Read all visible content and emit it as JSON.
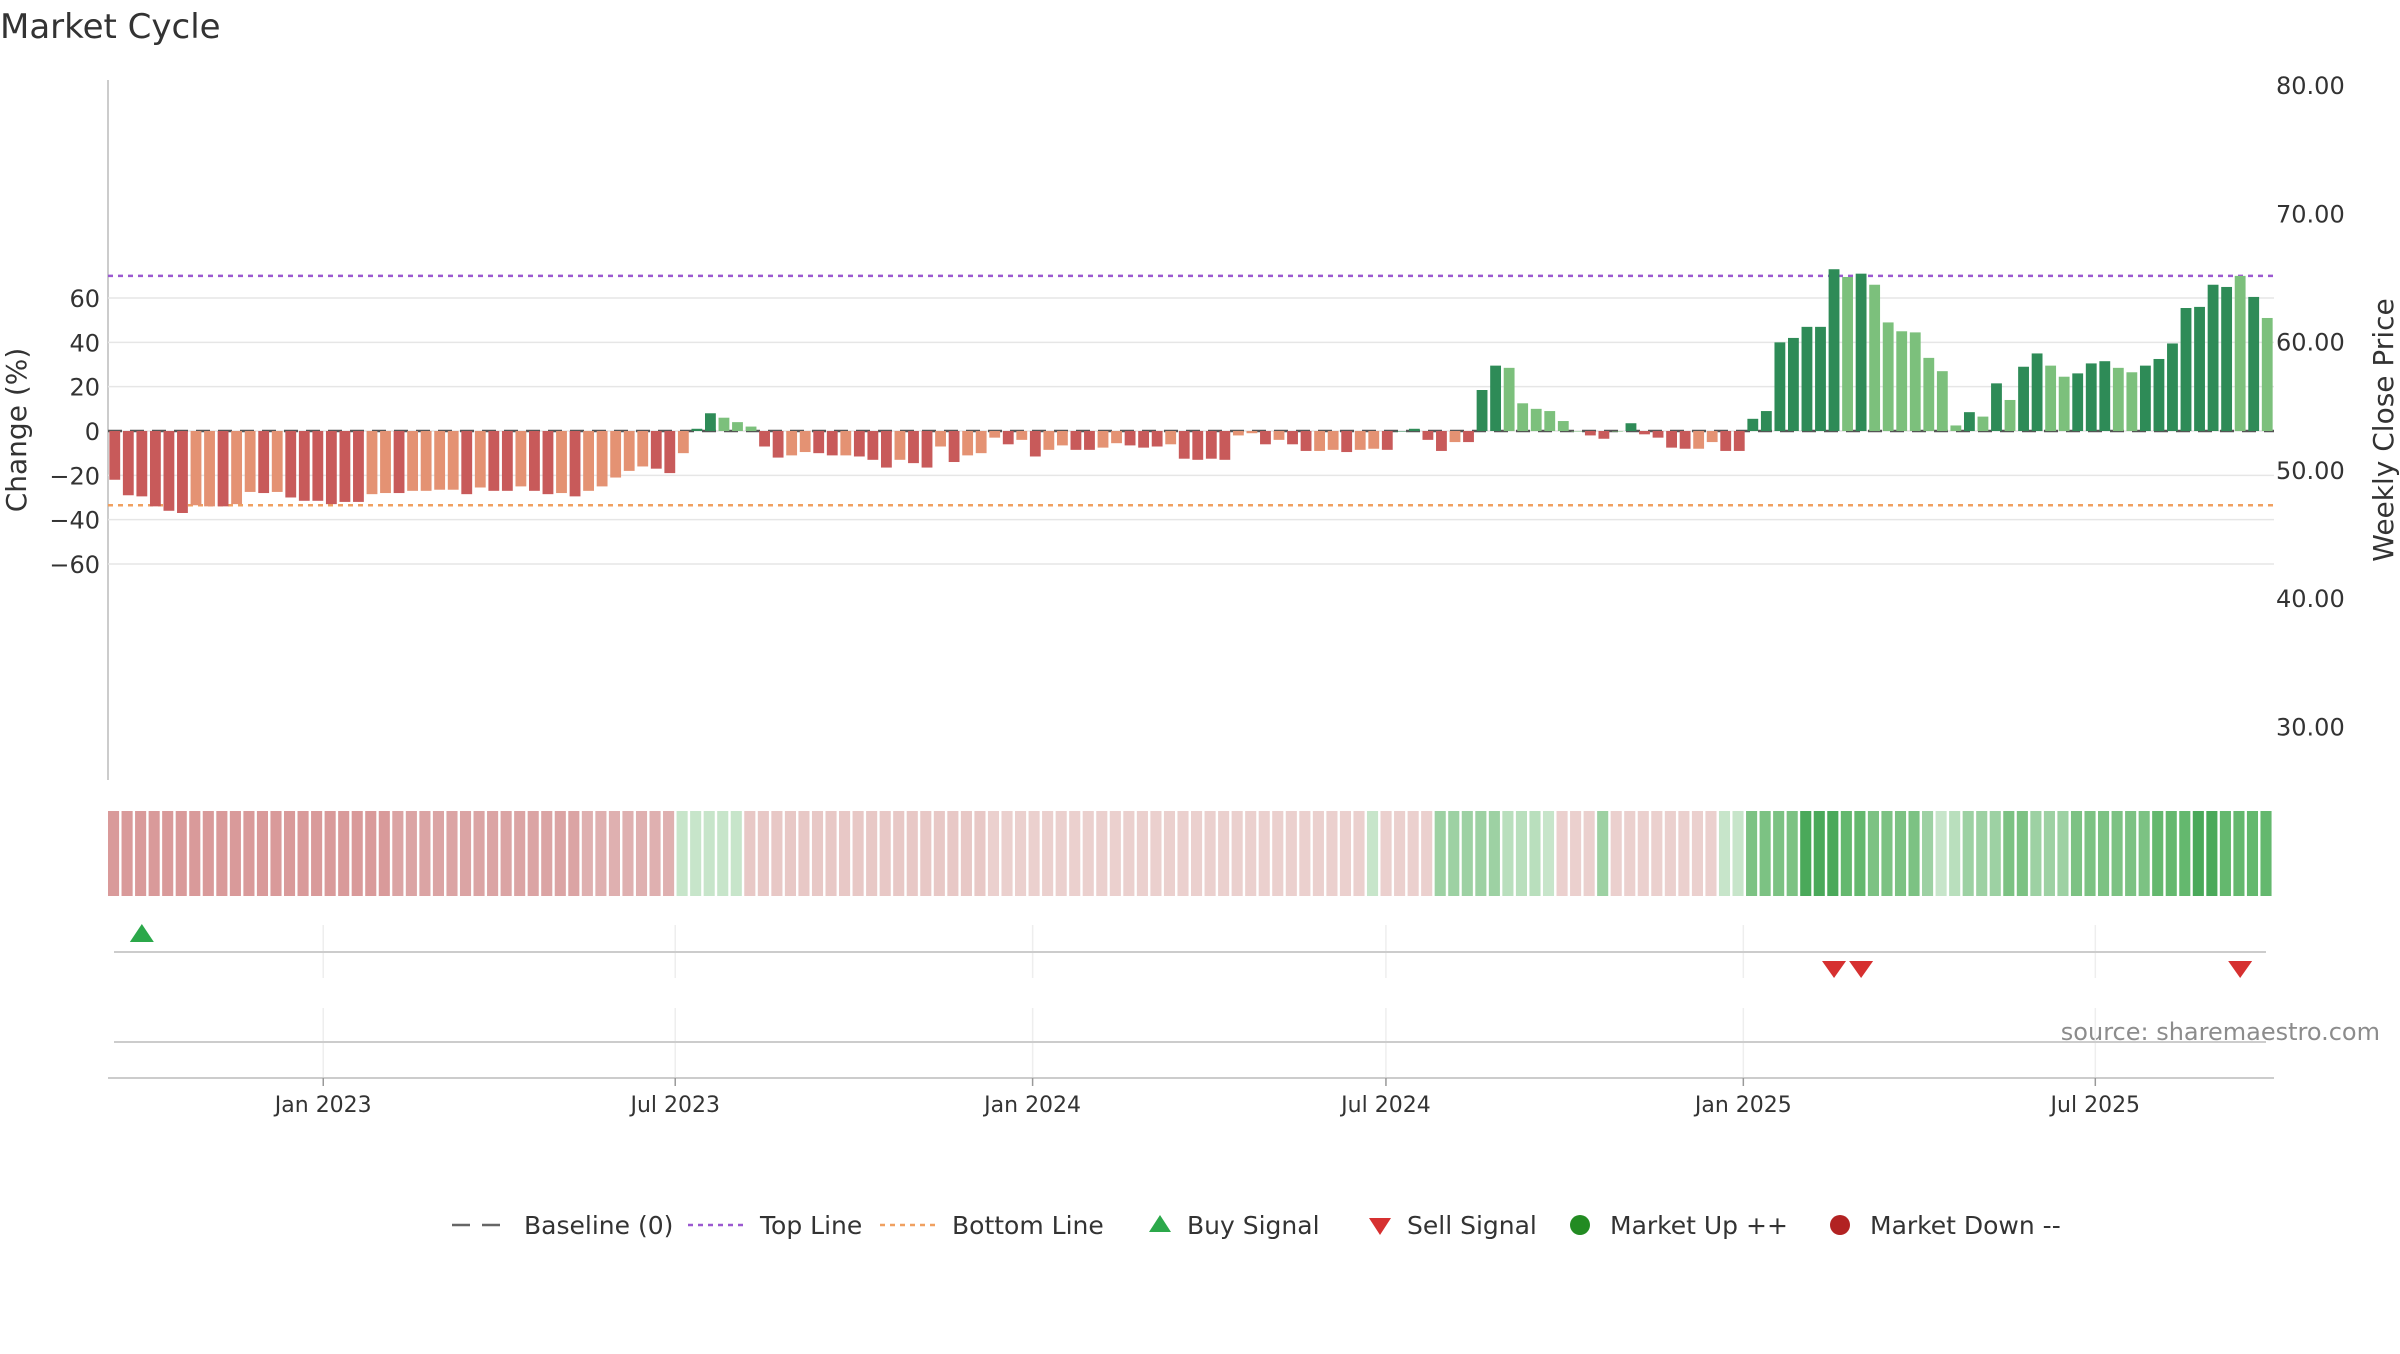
{
  "chart_data": {
    "type": "bar",
    "title": "Market Cycle",
    "ylabel": "Change (%)",
    "y2label": "Weekly Close Price",
    "source": "source: sharemaestro.com",
    "ylim": [
      -80,
      77
    ],
    "y2lim": [
      25,
      80
    ],
    "yticks": [
      60,
      40,
      20,
      0,
      -20,
      -40,
      -60
    ],
    "ytick_labels": [
      "60",
      "40",
      "20",
      "0",
      "−20",
      "−40",
      "−60"
    ],
    "y2ticks": [
      80,
      70,
      60,
      50,
      40,
      30
    ],
    "y2tick_labels": [
      "80.00",
      "70.00",
      "60.00",
      "50.00",
      "40.00",
      "30.00"
    ],
    "x_tick_labels": [
      "Jan 2023",
      "Jul 2023",
      "Jan 2024",
      "Jul 2024",
      "Jan 2025",
      "Jul 2025"
    ],
    "x_tick_week_index": [
      15.4,
      41.4,
      67.8,
      93.9,
      120.3,
      146.3
    ],
    "top_line": 70,
    "bottom_line": -33.5,
    "baseline": 0,
    "grid": true,
    "legend_placement": "bottom-center",
    "weekly_change": [
      -22,
      -29,
      -29.5,
      -34,
      -36,
      -37,
      -33.5,
      -34,
      -34,
      -33,
      -27.5,
      -28,
      -27.5,
      -30,
      -31.5,
      -31.5,
      -33,
      -32,
      -32,
      -28.5,
      -28,
      -28,
      -27,
      -27,
      -26.5,
      -26.5,
      -28.5,
      -25.5,
      -27,
      -27,
      -25,
      -27,
      -28.5,
      -28,
      -29.5,
      -27,
      -25,
      -21,
      -18,
      -16,
      -17,
      -19,
      -10,
      1,
      8,
      6,
      4,
      2,
      -7,
      -12,
      -11,
      -9.5,
      -10,
      -11,
      -11,
      -11.5,
      -13,
      -16.5,
      -13,
      -14.5,
      -16.5,
      -7,
      -14,
      -11,
      -10,
      -3,
      -6,
      -4,
      -11.5,
      -8.5,
      -6.5,
      -8.5,
      -8.5,
      -7.5,
      -5.5,
      -6.5,
      -7.5,
      -7,
      -6,
      -12.5,
      -13,
      -12.5,
      -13,
      -2,
      -1,
      -6,
      -4,
      -6,
      -9,
      -9,
      -8.5,
      -9.5,
      -8.5,
      -8,
      -8.5,
      0,
      1,
      -4,
      -9,
      -5,
      -5,
      18.5,
      29.5,
      28.5,
      12.5,
      10,
      9,
      4.5,
      0,
      -2,
      -3.5,
      0,
      3.5,
      -1.5,
      -3,
      -7.5,
      -8,
      -8,
      -5,
      -9,
      -9,
      5.5,
      9,
      40,
      42,
      47,
      47,
      73,
      69.5,
      71,
      66,
      49,
      45,
      44.5,
      33,
      27,
      2.5,
      8.5,
      6.5,
      21.5,
      14,
      29,
      35,
      29.5,
      24.5,
      26,
      30.5,
      31.5,
      28.5,
      26.5,
      29.5,
      32.5,
      39.5,
      55.5,
      56,
      66,
      65,
      70,
      60.5,
      51
    ],
    "weekly_color": [
      "#c85a5a",
      "#c85a5a",
      "#c85a5a",
      "#c85a5a",
      "#c85a5a",
      "#c85a5a",
      "#e49273",
      "#e49273",
      "#c85a5a",
      "#e49273",
      "#e49273",
      "#c85a5a",
      "#e49273",
      "#c85a5a",
      "#c85a5a",
      "#c85a5a",
      "#c85a5a",
      "#c85a5a",
      "#c85a5a",
      "#e49273",
      "#e49273",
      "#c85a5a",
      "#e49273",
      "#e49273",
      "#e49273",
      "#e49273",
      "#c85a5a",
      "#e49273",
      "#c85a5a",
      "#c85a5a",
      "#e49273",
      "#c85a5a",
      "#c85a5a",
      "#e49273",
      "#c85a5a",
      "#e49273",
      "#e49273",
      "#e49273",
      "#e49273",
      "#e49273",
      "#c85a5a",
      "#c85a5a",
      "#e49273",
      "#2e8b57",
      "#2e8b57",
      "#7cc07c",
      "#7cc07c",
      "#7cc07c",
      "#c85a5a",
      "#c85a5a",
      "#e49273",
      "#e49273",
      "#c85a5a",
      "#c85a5a",
      "#e49273",
      "#c85a5a",
      "#c85a5a",
      "#c85a5a",
      "#e49273",
      "#c85a5a",
      "#c85a5a",
      "#e49273",
      "#c85a5a",
      "#e49273",
      "#e49273",
      "#e49273",
      "#c85a5a",
      "#e49273",
      "#c85a5a",
      "#e49273",
      "#e49273",
      "#c85a5a",
      "#c85a5a",
      "#e49273",
      "#e49273",
      "#c85a5a",
      "#c85a5a",
      "#c85a5a",
      "#e49273",
      "#c85a5a",
      "#c85a5a",
      "#c85a5a",
      "#c85a5a",
      "#e49273",
      "#e49273",
      "#c85a5a",
      "#e49273",
      "#c85a5a",
      "#c85a5a",
      "#e49273",
      "#e49273",
      "#c85a5a",
      "#e49273",
      "#e49273",
      "#c85a5a",
      "#2e8b57",
      "#2e8b57",
      "#c85a5a",
      "#c85a5a",
      "#e49273",
      "#c85a5a",
      "#2e8b57",
      "#2e8b57",
      "#7cc07c",
      "#7cc07c",
      "#7cc07c",
      "#7cc07c",
      "#7cc07c",
      "#7cc07c",
      "#c85a5a",
      "#c85a5a",
      "#7cc07c",
      "#2e8b57",
      "#c85a5a",
      "#c85a5a",
      "#c85a5a",
      "#c85a5a",
      "#e49273",
      "#e49273",
      "#c85a5a",
      "#c85a5a",
      "#2e8b57",
      "#2e8b57",
      "#2e8b57",
      "#2e8b57",
      "#2e8b57",
      "#2e8b57",
      "#2e8b57",
      "#7cc07c",
      "#2e8b57",
      "#7cc07c",
      "#7cc07c",
      "#7cc07c",
      "#7cc07c",
      "#7cc07c",
      "#7cc07c",
      "#7cc07c",
      "#2e8b57",
      "#7cc07c",
      "#2e8b57",
      "#7cc07c",
      "#2e8b57",
      "#2e8b57",
      "#7cc07c",
      "#7cc07c",
      "#2e8b57",
      "#2e8b57",
      "#2e8b57",
      "#7cc07c",
      "#7cc07c",
      "#2e8b57",
      "#2e8b57",
      "#2e8b57",
      "#2e8b57",
      "#2e8b57",
      "#2e8b57",
      "#2e8b57",
      "#7cc07c",
      "#2e8b57",
      "#7cc07c",
      "#7cc07c"
    ],
    "heat_strip_color": [
      "#d99a9a",
      "#d99a9a",
      "#d99a9a",
      "#d99a9a",
      "#d99a9a",
      "#d99a9a",
      "#d99a9a",
      "#d99a9a",
      "#d99a9a",
      "#d99a9a",
      "#d99a9a",
      "#d99a9a",
      "#d99a9a",
      "#d99a9a",
      "#d99a9a",
      "#d99a9a",
      "#d99a9a",
      "#d99a9a",
      "#d99a9a",
      "#d99a9a",
      "#d99a9a",
      "#dba4a4",
      "#dba4a4",
      "#dba4a4",
      "#dba4a4",
      "#dba4a4",
      "#dba4a4",
      "#dba4a4",
      "#dba4a4",
      "#dba4a4",
      "#dba4a4",
      "#dba4a4",
      "#dba4a4",
      "#dba4a4",
      "#dba4a4",
      "#dfb0b0",
      "#dfb0b0",
      "#dfb0b0",
      "#dfb0b0",
      "#dfb0b0",
      "#dfb0b0",
      "#dfb0b0",
      "#c7e5ca",
      "#c7e5ca",
      "#c7e5ca",
      "#c7e5ca",
      "#c7e5ca",
      "#e8c8c6",
      "#e8c8c6",
      "#e8c8c6",
      "#e8c8c6",
      "#e8c8c6",
      "#e8c8c6",
      "#e8c8c6",
      "#e8c8c6",
      "#e8c8c6",
      "#e8c8c6",
      "#e8c8c6",
      "#e8c8c6",
      "#e8c8c6",
      "#e8c8c6",
      "#e8c8c6",
      "#e8c8c6",
      "#e8c8c6",
      "#e8c8c6",
      "#ebd0ce",
      "#ebd0ce",
      "#ebd0ce",
      "#ebd0ce",
      "#ebd0ce",
      "#ebd0ce",
      "#ebd0ce",
      "#ebd0ce",
      "#ebd0ce",
      "#ebd0ce",
      "#ebd0ce",
      "#ebd0ce",
      "#ebd0ce",
      "#ebd0ce",
      "#ebd0ce",
      "#ebd0ce",
      "#ebd0ce",
      "#ebd0ce",
      "#ebd0ce",
      "#ebd0ce",
      "#ebd0ce",
      "#ebd0ce",
      "#ebd0ce",
      "#ebd0ce",
      "#ebd0ce",
      "#ebd0ce",
      "#ebd0ce",
      "#ebd0ce",
      "#c7e5ca",
      "#ebd0ce",
      "#ebd0ce",
      "#ebd0ce",
      "#ebd0ce",
      "#9dd1a3",
      "#9dd1a3",
      "#9dd1a3",
      "#9dd1a3",
      "#9dd1a3",
      "#b9dfbd",
      "#b9dfbd",
      "#b9dfbd",
      "#c7e5ca",
      "#ebd0ce",
      "#ebd0ce",
      "#ebd0ce",
      "#9dd1a3",
      "#ebd0ce",
      "#ebd0ce",
      "#ebd0ce",
      "#ebd0ce",
      "#ebd0ce",
      "#ebd0ce",
      "#ebd0ce",
      "#ebd0ce",
      "#c7e5ca",
      "#c7e5ca",
      "#7cc283",
      "#7cc283",
      "#7cc283",
      "#7cc283",
      "#4aa95a",
      "#4aa95a",
      "#4aa95a",
      "#64b86e",
      "#64b86e",
      "#7cc283",
      "#7cc283",
      "#7cc283",
      "#7cc283",
      "#9dd1a3",
      "#c7e5ca",
      "#b9dfbd",
      "#9dd1a3",
      "#9dd1a3",
      "#9dd1a3",
      "#7cc283",
      "#7cc283",
      "#9dd1a3",
      "#9dd1a3",
      "#9dd1a3",
      "#7cc283",
      "#7cc283",
      "#7cc283",
      "#7cc283",
      "#7cc283",
      "#7cc283",
      "#64b86e",
      "#64b86e",
      "#64b86e",
      "#4aa95a",
      "#4aa95a",
      "#64b86e",
      "#64b86e",
      "#64b86e",
      "#64b86e"
    ],
    "buy_signal_week_index": [
      2
    ],
    "sell_signal_week_index": [
      127,
      129,
      157
    ]
  },
  "legend": [
    {
      "label": "Baseline (0)",
      "icon": "dash-line",
      "color": "#666666"
    },
    {
      "label": "Top Line",
      "icon": "dotted-line",
      "color": "#9b59d0"
    },
    {
      "label": "Bottom Line",
      "icon": "dotted-line",
      "color": "#f0a060"
    },
    {
      "label": "Buy Signal",
      "icon": "triangle-up",
      "color": "#2ba84a"
    },
    {
      "label": "Sell Signal",
      "icon": "triangle-down",
      "color": "#d63030"
    },
    {
      "label": "Market Up ++",
      "icon": "circle",
      "color": "#228b22"
    },
    {
      "label": "Market Down --",
      "icon": "circle",
      "color": "#b22222"
    }
  ]
}
